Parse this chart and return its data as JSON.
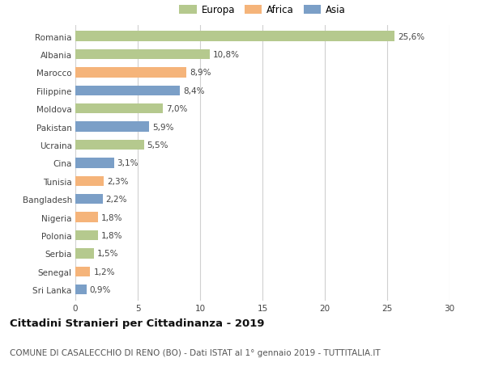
{
  "countries": [
    "Romania",
    "Albania",
    "Marocco",
    "Filippine",
    "Moldova",
    "Pakistan",
    "Ucraina",
    "Cina",
    "Tunisia",
    "Bangladesh",
    "Nigeria",
    "Polonia",
    "Serbia",
    "Senegal",
    "Sri Lanka"
  ],
  "values": [
    25.6,
    10.8,
    8.9,
    8.4,
    7.0,
    5.9,
    5.5,
    3.1,
    2.3,
    2.2,
    1.8,
    1.8,
    1.5,
    1.2,
    0.9
  ],
  "labels": [
    "25,6%",
    "10,8%",
    "8,9%",
    "8,4%",
    "7,0%",
    "5,9%",
    "5,5%",
    "3,1%",
    "2,3%",
    "2,2%",
    "1,8%",
    "1,8%",
    "1,5%",
    "1,2%",
    "0,9%"
  ],
  "continents": [
    "Europa",
    "Europa",
    "Africa",
    "Asia",
    "Europa",
    "Asia",
    "Europa",
    "Asia",
    "Africa",
    "Asia",
    "Africa",
    "Europa",
    "Europa",
    "Africa",
    "Asia"
  ],
  "colors": {
    "Europa": "#b5c98e",
    "Africa": "#f5b47a",
    "Asia": "#7b9fc7"
  },
  "legend_labels": [
    "Europa",
    "Africa",
    "Asia"
  ],
  "xlim": [
    0,
    30
  ],
  "xticks": [
    0,
    5,
    10,
    15,
    20,
    25,
    30
  ],
  "title": "Cittadini Stranieri per Cittadinanza - 2019",
  "subtitle": "COMUNE DI CASALECCHIO DI RENO (BO) - Dati ISTAT al 1° gennaio 2019 - TUTTITALIA.IT",
  "background_color": "#ffffff",
  "grid_color": "#d0d0d0",
  "bar_height": 0.55,
  "title_fontsize": 9.5,
  "subtitle_fontsize": 7.5,
  "label_fontsize": 7.5,
  "tick_fontsize": 7.5,
  "legend_fontsize": 8.5
}
